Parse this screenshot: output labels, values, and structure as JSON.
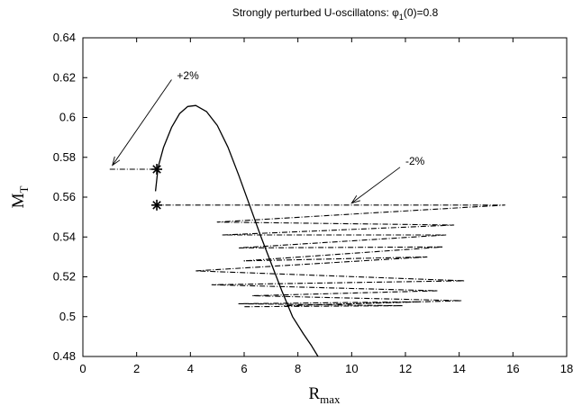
{
  "chart_data": {
    "type": "line",
    "title": {
      "main": "Strongly perturbed U-oscillatons: ",
      "phi": "φ",
      "sub": "1",
      "rest": "(0)=0.8"
    },
    "xlabel": {
      "main": "R",
      "sub": "max"
    },
    "ylabel": {
      "main": "M",
      "sub": "T"
    },
    "xlim": [
      0,
      18
    ],
    "ylim": [
      0.48,
      0.64
    ],
    "x_ticks": [
      "0",
      "2",
      "4",
      "6",
      "8",
      "10",
      "12",
      "14",
      "16",
      "18"
    ],
    "y_ticks": [
      "0.48",
      "0.5",
      "0.52",
      "0.54",
      "0.56",
      "0.58",
      "0.6",
      "0.62",
      "0.64"
    ],
    "grid": false,
    "series": [
      {
        "style": "solid",
        "x": [
          2.7,
          2.8,
          3.0,
          3.3,
          3.6,
          3.9,
          4.2,
          4.6,
          5.0,
          5.4,
          5.8,
          6.2,
          6.6,
          7.0,
          7.4,
          7.8,
          8.2,
          8.5,
          8.75
        ],
        "y": [
          0.563,
          0.575,
          0.585,
          0.595,
          0.602,
          0.6055,
          0.606,
          0.603,
          0.596,
          0.585,
          0.571,
          0.556,
          0.541,
          0.527,
          0.513,
          0.5,
          0.4915,
          0.4855,
          0.48
        ]
      },
      {
        "style": "dashed",
        "x": [
          1.0,
          2.7
        ],
        "y": [
          0.574,
          0.574
        ]
      },
      {
        "style": "dashed",
        "x": [
          2.7,
          15.7,
          5.0,
          13.8,
          5.2,
          13.5,
          5.8,
          13.4,
          6.0,
          12.8,
          4.2,
          14.2,
          4.8,
          13.2,
          6.3,
          14.1,
          7.5,
          12.6,
          5.8,
          11.9,
          6.0
        ],
        "y": [
          0.556,
          0.556,
          0.5475,
          0.546,
          0.541,
          0.541,
          0.5345,
          0.535,
          0.528,
          0.53,
          0.523,
          0.518,
          0.516,
          0.513,
          0.5105,
          0.508,
          0.5055,
          0.5075,
          0.5065,
          0.5055,
          0.505
        ]
      }
    ],
    "markers": [
      {
        "symbol": "star",
        "x": 2.75,
        "y": 0.574
      },
      {
        "symbol": "star",
        "x": 2.75,
        "y": 0.556
      }
    ],
    "annotations": [
      {
        "text": "+2%",
        "text_x": 3.5,
        "text_y": 0.621,
        "arrow_from": [
          3.3,
          0.619
        ],
        "arrow_to": [
          1.1,
          0.576
        ]
      },
      {
        "text": "-2%",
        "text_x": 12.0,
        "text_y": 0.578,
        "arrow_from": [
          11.8,
          0.575
        ],
        "arrow_to": [
          10.0,
          0.557
        ]
      }
    ]
  }
}
